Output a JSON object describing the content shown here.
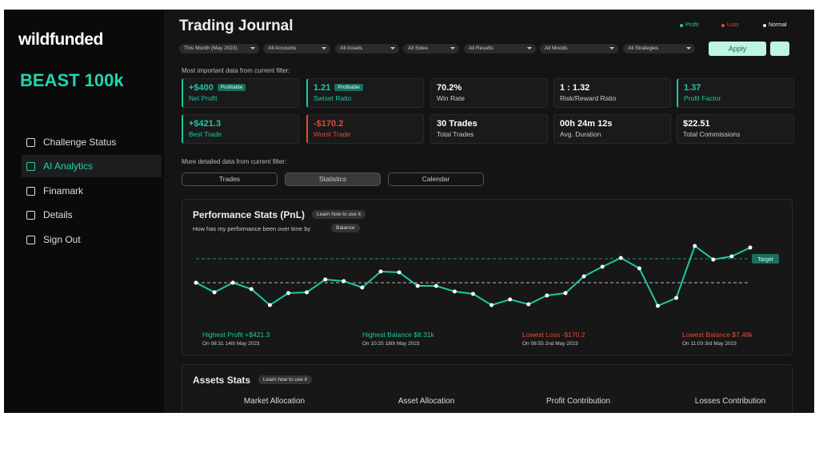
{
  "sidebar": {
    "brand": "wildfunded",
    "account": "BEAST 100k",
    "menu": [
      "Challenge Status",
      "AI Analytics",
      "Finamark",
      "Details",
      "Sign Out"
    ],
    "active": 1
  },
  "header": {
    "title": "Trading Journal",
    "legend": [
      "Profit",
      "Loss",
      "Normal"
    ]
  },
  "filters": [
    "This Month (May 2023)",
    "All Accounts",
    "All Assets",
    "All Sides",
    "All Results",
    "All Moods",
    "All Strategies"
  ],
  "apply": "Apply",
  "summary_label": "Most important data from current filter:",
  "cards": [
    {
      "value": "+$400",
      "badge": "Profitable",
      "label": "Net Profit",
      "tone": "profit"
    },
    {
      "value": "1.21",
      "badge": "Profitable",
      "label": "Swiset Ratio",
      "tone": "profit"
    },
    {
      "value": "70.2%",
      "label": "Win Rate",
      "tone": "normal"
    },
    {
      "value": "1 : 1.32",
      "label": "Risk/Reward Ratio",
      "tone": "normal"
    },
    {
      "value": "1.37",
      "label": "Profit Factor",
      "tone": "profit"
    },
    {
      "value": "+$421.3",
      "label": "Best Trade",
      "tone": "profit"
    },
    {
      "value": "-$170.2",
      "label": "Worst Trade",
      "tone": "loss"
    },
    {
      "value": "30 Trades",
      "label": "Total Trades",
      "tone": "normal"
    },
    {
      "value": "00h 24m 12s",
      "label": "Avg. Duration",
      "tone": "normal"
    },
    {
      "value": "$22.51",
      "label": "Total Commissions",
      "tone": "normal"
    }
  ],
  "detail_label": "More detailed data from current filter:",
  "tabs": [
    "Trades",
    "Statistics",
    "Calendar"
  ],
  "active_tab": 1,
  "performance": {
    "title": "Performance Stats (PnL)",
    "help": "Learn how to use it",
    "question": "How has my performance been over time by",
    "dropdown": "Balance",
    "target_label": "Target",
    "chart_data": {
      "type": "line",
      "color": "#1ec7a5",
      "ylim": [
        0,
        100
      ],
      "target": 76,
      "baseline": 46,
      "values": [
        46,
        34,
        46,
        38,
        18,
        33,
        34,
        50,
        48,
        40,
        60,
        59,
        42,
        42,
        35,
        32,
        18,
        25,
        19,
        30,
        33,
        54,
        66,
        77,
        64,
        17,
        27,
        92,
        75,
        79,
        90
      ]
    },
    "highlights": [
      {
        "title": "Highest Profit +$421.3",
        "time": "On 08:31 14th May 2023",
        "tone": "profit"
      },
      {
        "title": "Highest Balance $8.31k",
        "time": "On 10:25 18th May 2023",
        "tone": "profit"
      },
      {
        "title": "Lowest Loss -$170.2",
        "time": "On 08:55 2nd May 2023",
        "tone": "loss"
      },
      {
        "title": "Lowest Balance $7.48k",
        "time": "On 11:03 3rd May 2023",
        "tone": "loss"
      }
    ]
  },
  "assets": {
    "title": "Assets Stats",
    "help": "Learn how to use it",
    "columns": [
      "Market Allocation",
      "Asset Allocation",
      "Profit Contribution",
      "Losses Contribution"
    ]
  }
}
